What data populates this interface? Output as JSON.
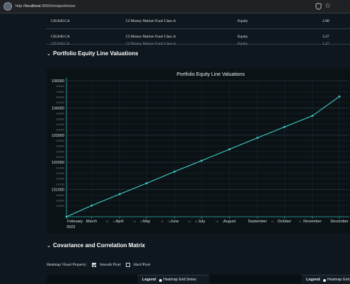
{
  "browser": {
    "url_prefix": "http://",
    "url_host": "localhost",
    "url_rest": ":3000/miniportimizer"
  },
  "table": {
    "rows": [
      {
        "code": "CIG849.CA",
        "name": "CI Money Market Fund Class A",
        "type": "Equity",
        "value": "2.80"
      },
      {
        "code": "CIG848.CA",
        "name": "CI Money Market Fund Class A",
        "type": "Equity",
        "value": "3.27"
      },
      {
        "code": "CIG848.CA",
        "name": "CI Money Market Fund Class A",
        "type": "Equity",
        "value": "1.47"
      }
    ]
  },
  "sections": {
    "line_valuations": "Portfolio Equity Line Valuations",
    "covariance": "Covariance and Correlation Matrix"
  },
  "colors": {
    "line": "#3fd0c6",
    "grid": "#1d2a31",
    "axis": "#2fb6ad"
  },
  "chart_data": {
    "type": "line",
    "title": "Portfolio Equity Line Valuations",
    "x_major_ticks": [
      "February",
      "March",
      "April",
      "May",
      "June",
      "July",
      "August",
      "September",
      "October",
      "November",
      "December"
    ],
    "x_minor_ticks": [
      "15",
      "15",
      "15",
      "15",
      "15",
      "15",
      "15",
      "15",
      "15",
      "15",
      "16",
      "17",
      "13",
      "14"
    ],
    "x_year_label": "2023",
    "y_major_ticks": [
      "101000",
      "102000",
      "103000",
      "104000",
      "105000"
    ],
    "y_minor_ticks": [
      "100400",
      "100600",
      "100800",
      "101200",
      "101400",
      "101600",
      "101800",
      "102200",
      "102400",
      "102600",
      "102800",
      "103200",
      "103400",
      "103600",
      "103800",
      "104200",
      "104400",
      "104600",
      "104800"
    ],
    "ylim": [
      100000,
      105000
    ],
    "series": [
      {
        "x": [
          "2023-02-01",
          "2023-03-01",
          "2023-04-01",
          "2023-05-01",
          "2023-06-01",
          "2023-07-01",
          "2023-08-01",
          "2023-09-01",
          "2023-10-01",
          "2023-11-01",
          "2023-12-01"
        ],
        "values": [
          100000,
          100410,
          100830,
          101230,
          101660,
          102060,
          102480,
          102900,
          103300,
          103710,
          104420
        ]
      }
    ]
  },
  "heatmap": {
    "property_label": "Heatmap Visual Property:",
    "smooth_label": "Smooth Pixel",
    "smooth_checked": true,
    "hard_label": "Hard Pixel",
    "hard_checked": false,
    "legend_title": "Legend",
    "legend_item": "Heatmap Grid Series",
    "legend_item_cut": "Heatmap Grid"
  }
}
